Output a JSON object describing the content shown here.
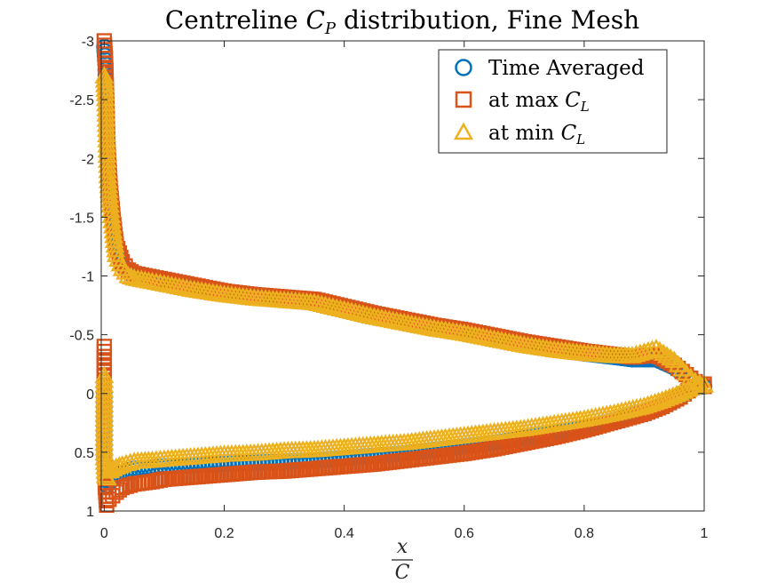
{
  "colors": {
    "time_averaged": "#0072BD",
    "max_cl": "#D95319",
    "min_cl": "#EDB120",
    "axis": "#262626",
    "background": "#ffffff"
  },
  "chart_data": {
    "type": "scatter",
    "title": "Centreline C_P distribution, Fine Mesh",
    "title_parts": {
      "prefix": "Centreline ",
      "var": "C",
      "sub": "P",
      "suffix": " distribution, Fine Mesh"
    },
    "xlabel": {
      "numerator": "x",
      "denominator": "C"
    },
    "ylabel": "",
    "xlim": [
      -0.005,
      1.0
    ],
    "ylim": [
      -3.0,
      1.0
    ],
    "y_reversed": true,
    "grid": false,
    "legend_position": "top-right",
    "x_ticks": [
      {
        "value": 0,
        "label": "0"
      },
      {
        "value": 0.2,
        "label": "0.2"
      },
      {
        "value": 0.4,
        "label": "0.4"
      },
      {
        "value": 0.6,
        "label": "0.6"
      },
      {
        "value": 0.8,
        "label": "0.8"
      },
      {
        "value": 1,
        "label": "1"
      }
    ],
    "y_ticks": [
      {
        "value": -3,
        "label": "-3"
      },
      {
        "value": -2.5,
        "label": "-2.5"
      },
      {
        "value": -2,
        "label": "-2"
      },
      {
        "value": -1.5,
        "label": "-1.5"
      },
      {
        "value": -1,
        "label": "-1"
      },
      {
        "value": -0.5,
        "label": "-0.5"
      },
      {
        "value": 0,
        "label": "0"
      },
      {
        "value": 0.5,
        "label": "0.5"
      },
      {
        "value": 1,
        "label": "1"
      }
    ],
    "series": [
      {
        "name": "Time Averaged",
        "legend_prefix": "Time Averaged",
        "legend_var": "",
        "legend_sub": "",
        "marker": "circle",
        "color": "#0072BD",
        "upper": [
          [
            0.0,
            -2.95
          ],
          [
            0.002,
            -2.8
          ],
          [
            0.004,
            -2.4
          ],
          [
            0.006,
            -2.0
          ],
          [
            0.01,
            -1.7
          ],
          [
            0.015,
            -1.45
          ],
          [
            0.02,
            -1.25
          ],
          [
            0.03,
            -1.1
          ],
          [
            0.04,
            -1.03
          ],
          [
            0.05,
            -1.0
          ],
          [
            0.08,
            -0.97
          ],
          [
            0.1,
            -0.95
          ],
          [
            0.15,
            -0.89
          ],
          [
            0.2,
            -0.85
          ],
          [
            0.25,
            -0.82
          ],
          [
            0.3,
            -0.8
          ],
          [
            0.35,
            -0.78
          ],
          [
            0.4,
            -0.72
          ],
          [
            0.45,
            -0.66
          ],
          [
            0.5,
            -0.61
          ],
          [
            0.55,
            -0.56
          ],
          [
            0.6,
            -0.52
          ],
          [
            0.65,
            -0.47
          ],
          [
            0.7,
            -0.42
          ],
          [
            0.75,
            -0.38
          ],
          [
            0.8,
            -0.34
          ],
          [
            0.85,
            -0.31
          ],
          [
            0.88,
            -0.29
          ],
          [
            0.92,
            -0.29
          ],
          [
            0.95,
            -0.22
          ],
          [
            0.97,
            -0.15
          ],
          [
            0.985,
            -0.1
          ],
          [
            1.0,
            -0.06
          ]
        ],
        "lower": [
          [
            0.0,
            0.0
          ],
          [
            0.0,
            0.2
          ],
          [
            0.0,
            0.4
          ],
          [
            0.0,
            0.55
          ],
          [
            0.002,
            0.7
          ],
          [
            0.005,
            0.78
          ],
          [
            0.01,
            0.74
          ],
          [
            0.02,
            0.7
          ],
          [
            0.03,
            0.67
          ],
          [
            0.05,
            0.64
          ],
          [
            0.08,
            0.63
          ],
          [
            0.1,
            0.62
          ],
          [
            0.15,
            0.61
          ],
          [
            0.2,
            0.6
          ],
          [
            0.25,
            0.59
          ],
          [
            0.3,
            0.58
          ],
          [
            0.35,
            0.57
          ],
          [
            0.4,
            0.55
          ],
          [
            0.45,
            0.53
          ],
          [
            0.5,
            0.51
          ],
          [
            0.55,
            0.48
          ],
          [
            0.6,
            0.45
          ],
          [
            0.65,
            0.42
          ],
          [
            0.7,
            0.38
          ],
          [
            0.75,
            0.34
          ],
          [
            0.8,
            0.29
          ],
          [
            0.85,
            0.23
          ],
          [
            0.9,
            0.16
          ],
          [
            0.93,
            0.1
          ],
          [
            0.96,
            0.03
          ],
          [
            0.98,
            -0.05
          ],
          [
            1.0,
            -0.06
          ]
        ]
      },
      {
        "name": "at max C_L",
        "legend_prefix": "at max ",
        "legend_var": "C",
        "legend_sub": "L",
        "marker": "square",
        "color": "#D95319",
        "upper": [
          [
            0.0,
            -3.0
          ],
          [
            0.002,
            -2.85
          ],
          [
            0.004,
            -2.5
          ],
          [
            0.006,
            -2.1
          ],
          [
            0.01,
            -1.75
          ],
          [
            0.015,
            -1.48
          ],
          [
            0.02,
            -1.27
          ],
          [
            0.03,
            -1.12
          ],
          [
            0.04,
            -1.05
          ],
          [
            0.05,
            -1.02
          ],
          [
            0.08,
            -0.99
          ],
          [
            0.1,
            -0.97
          ],
          [
            0.15,
            -0.92
          ],
          [
            0.2,
            -0.87
          ],
          [
            0.25,
            -0.84
          ],
          [
            0.3,
            -0.82
          ],
          [
            0.35,
            -0.8
          ],
          [
            0.4,
            -0.74
          ],
          [
            0.45,
            -0.68
          ],
          [
            0.5,
            -0.63
          ],
          [
            0.55,
            -0.58
          ],
          [
            0.6,
            -0.54
          ],
          [
            0.65,
            -0.49
          ],
          [
            0.7,
            -0.44
          ],
          [
            0.75,
            -0.4
          ],
          [
            0.8,
            -0.36
          ],
          [
            0.85,
            -0.33
          ],
          [
            0.88,
            -0.31
          ],
          [
            0.92,
            -0.33
          ],
          [
            0.95,
            -0.24
          ],
          [
            0.97,
            -0.16
          ],
          [
            0.985,
            -0.1
          ],
          [
            1.0,
            -0.06
          ]
        ],
        "lower": [
          [
            0.0,
            -0.4
          ],
          [
            0.0,
            -0.1
          ],
          [
            0.0,
            0.2
          ],
          [
            0.0,
            0.5
          ],
          [
            0.002,
            0.8
          ],
          [
            0.004,
            0.95
          ],
          [
            0.008,
            0.9
          ],
          [
            0.02,
            0.84
          ],
          [
            0.03,
            0.8
          ],
          [
            0.05,
            0.77
          ],
          [
            0.08,
            0.75
          ],
          [
            0.1,
            0.73
          ],
          [
            0.15,
            0.71
          ],
          [
            0.2,
            0.69
          ],
          [
            0.25,
            0.67
          ],
          [
            0.3,
            0.66
          ],
          [
            0.35,
            0.64
          ],
          [
            0.4,
            0.62
          ],
          [
            0.45,
            0.6
          ],
          [
            0.5,
            0.57
          ],
          [
            0.55,
            0.54
          ],
          [
            0.6,
            0.51
          ],
          [
            0.65,
            0.47
          ],
          [
            0.7,
            0.42
          ],
          [
            0.75,
            0.37
          ],
          [
            0.8,
            0.31
          ],
          [
            0.85,
            0.24
          ],
          [
            0.9,
            0.17
          ],
          [
            0.93,
            0.11
          ],
          [
            0.96,
            0.03
          ],
          [
            0.98,
            -0.05
          ],
          [
            1.0,
            -0.08
          ]
        ]
      },
      {
        "name": "at min C_L",
        "legend_prefix": "at min ",
        "legend_var": "C",
        "legend_sub": "L",
        "marker": "triangle",
        "color": "#EDB120",
        "upper": [
          [
            0.0,
            -2.7
          ],
          [
            0.002,
            -2.55
          ],
          [
            0.004,
            -2.2
          ],
          [
            0.006,
            -1.85
          ],
          [
            0.01,
            -1.6
          ],
          [
            0.015,
            -1.38
          ],
          [
            0.02,
            -1.18
          ],
          [
            0.03,
            -1.06
          ],
          [
            0.04,
            -1.0
          ],
          [
            0.05,
            -0.98
          ],
          [
            0.08,
            -0.95
          ],
          [
            0.1,
            -0.93
          ],
          [
            0.15,
            -0.88
          ],
          [
            0.2,
            -0.84
          ],
          [
            0.25,
            -0.81
          ],
          [
            0.3,
            -0.79
          ],
          [
            0.35,
            -0.77
          ],
          [
            0.4,
            -0.71
          ],
          [
            0.45,
            -0.65
          ],
          [
            0.5,
            -0.6
          ],
          [
            0.55,
            -0.55
          ],
          [
            0.6,
            -0.51
          ],
          [
            0.65,
            -0.46
          ],
          [
            0.7,
            -0.41
          ],
          [
            0.75,
            -0.37
          ],
          [
            0.8,
            -0.34
          ],
          [
            0.85,
            -0.32
          ],
          [
            0.88,
            -0.32
          ],
          [
            0.92,
            -0.38
          ],
          [
            0.95,
            -0.28
          ],
          [
            0.97,
            -0.17
          ],
          [
            0.985,
            -0.1
          ],
          [
            1.0,
            -0.07
          ]
        ],
        "lower": [
          [
            0.0,
            -0.15
          ],
          [
            0.0,
            0.1
          ],
          [
            0.0,
            0.3
          ],
          [
            0.0,
            0.55
          ],
          [
            0.002,
            0.7
          ],
          [
            0.005,
            0.72
          ],
          [
            0.01,
            0.66
          ],
          [
            0.02,
            0.63
          ],
          [
            0.03,
            0.61
          ],
          [
            0.05,
            0.58
          ],
          [
            0.08,
            0.57
          ],
          [
            0.1,
            0.56
          ],
          [
            0.15,
            0.54
          ],
          [
            0.2,
            0.52
          ],
          [
            0.25,
            0.51
          ],
          [
            0.3,
            0.49
          ],
          [
            0.35,
            0.48
          ],
          [
            0.4,
            0.46
          ],
          [
            0.45,
            0.44
          ],
          [
            0.5,
            0.42
          ],
          [
            0.55,
            0.39
          ],
          [
            0.6,
            0.36
          ],
          [
            0.65,
            0.33
          ],
          [
            0.7,
            0.3
          ],
          [
            0.75,
            0.26
          ],
          [
            0.8,
            0.22
          ],
          [
            0.85,
            0.17
          ],
          [
            0.9,
            0.11
          ],
          [
            0.93,
            0.06
          ],
          [
            0.96,
            0.0
          ],
          [
            0.98,
            -0.05
          ],
          [
            1.0,
            -0.07
          ]
        ]
      }
    ]
  }
}
